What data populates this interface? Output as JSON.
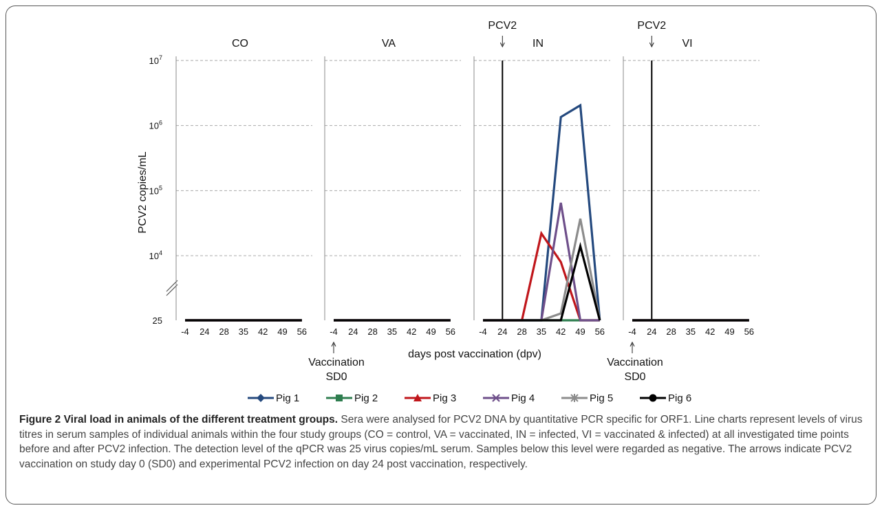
{
  "chart_data": {
    "type": "line",
    "ylabel": "PCV2 copies/mL",
    "xlabel": "days post vaccination (dpv)",
    "y_scale": "log",
    "y_ticks": [
      {
        "value": 25,
        "label": "25"
      },
      {
        "value": 10000,
        "label": "10",
        "exp": "4"
      },
      {
        "value": 100000,
        "label": "10",
        "exp": "5"
      },
      {
        "value": 1000000,
        "label": "10",
        "exp": "6"
      },
      {
        "value": 10000000,
        "label": "10",
        "exp": "7"
      }
    ],
    "categories": [
      "-4",
      "24",
      "28",
      "35",
      "42",
      "49",
      "56"
    ],
    "panels": [
      {
        "name": "CO",
        "arrow_top": "",
        "arrow_bottom": [],
        "series": [
          {
            "name": "Pig 1",
            "values": [
              25,
              25,
              25,
              25,
              25,
              25,
              25
            ]
          },
          {
            "name": "Pig 2",
            "values": [
              25,
              25,
              25,
              25,
              25,
              25,
              25
            ]
          },
          {
            "name": "Pig 3",
            "values": [
              25,
              25,
              25,
              25,
              25,
              25,
              25
            ]
          },
          {
            "name": "Pig 4",
            "values": [
              25,
              25,
              25,
              25,
              25,
              25,
              25
            ]
          },
          {
            "name": "Pig 5",
            "values": [
              25,
              25,
              25,
              25,
              25,
              25,
              25
            ]
          },
          {
            "name": "Pig 6",
            "values": [
              25,
              25,
              25,
              25,
              25,
              25,
              25
            ]
          }
        ]
      },
      {
        "name": "VA",
        "arrow_top": "",
        "arrow_bottom": [
          "Vaccination",
          "SD0"
        ],
        "series": [
          {
            "name": "Pig 1",
            "values": [
              25,
              25,
              25,
              25,
              25,
              25,
              25
            ]
          },
          {
            "name": "Pig 2",
            "values": [
              25,
              25,
              25,
              25,
              25,
              25,
              25
            ]
          },
          {
            "name": "Pig 3",
            "values": [
              25,
              25,
              25,
              25,
              25,
              25,
              25
            ]
          },
          {
            "name": "Pig 4",
            "values": [
              25,
              25,
              25,
              25,
              25,
              25,
              25
            ]
          },
          {
            "name": "Pig 5",
            "values": [
              25,
              25,
              25,
              25,
              25,
              25,
              25
            ]
          },
          {
            "name": "Pig 6",
            "values": [
              25,
              25,
              25,
              25,
              25,
              25,
              25
            ]
          }
        ]
      },
      {
        "name": "IN",
        "arrow_top": "PCV2",
        "arrow_bottom": [],
        "series": [
          {
            "name": "Pig 1",
            "values": [
              25,
              25,
              25,
              25,
              1350000,
              2050000,
              25
            ]
          },
          {
            "name": "Pig 2",
            "values": [
              25,
              25,
              25,
              25,
              25,
              25,
              25
            ]
          },
          {
            "name": "Pig 3",
            "values": [
              25,
              25,
              25,
              22000,
              8000,
              25,
              25
            ]
          },
          {
            "name": "Pig 4",
            "values": [
              25,
              25,
              25,
              25,
              65000,
              25,
              25
            ]
          },
          {
            "name": "Pig 5",
            "values": [
              25,
              25,
              25,
              25,
              30,
              37000,
              25
            ]
          },
          {
            "name": "Pig 6",
            "values": [
              25,
              25,
              25,
              25,
              25,
              14000,
              25
            ]
          }
        ]
      },
      {
        "name": "VI",
        "arrow_top": "PCV2",
        "arrow_bottom": [
          "Vaccination",
          "SD0"
        ],
        "series": [
          {
            "name": "Pig 1",
            "values": [
              25,
              25,
              25,
              25,
              25,
              25,
              25
            ]
          },
          {
            "name": "Pig 2",
            "values": [
              25,
              25,
              25,
              25,
              25,
              25,
              25
            ]
          },
          {
            "name": "Pig 3",
            "values": [
              25,
              25,
              25,
              25,
              25,
              25,
              25
            ]
          },
          {
            "name": "Pig 4",
            "values": [
              25,
              25,
              25,
              25,
              25,
              25,
              25
            ]
          },
          {
            "name": "Pig 5",
            "values": [
              25,
              25,
              25,
              25,
              25,
              25,
              25
            ]
          },
          {
            "name": "Pig 6",
            "values": [
              25,
              25,
              25,
              25,
              25,
              25,
              25
            ]
          }
        ]
      }
    ],
    "legend": {
      "placement": "bottom",
      "items": [
        {
          "name": "Pig 1",
          "color": "#24497e",
          "marker": "diamond"
        },
        {
          "name": "Pig 2",
          "color": "#2e7d4f",
          "marker": "square"
        },
        {
          "name": "Pig 3",
          "color": "#c0161b",
          "marker": "triangle"
        },
        {
          "name": "Pig 4",
          "color": "#6e4f8a",
          "marker": "x"
        },
        {
          "name": "Pig 5",
          "color": "#8c8c8c",
          "marker": "star"
        },
        {
          "name": "Pig 6",
          "color": "#000000",
          "marker": "circle"
        }
      ]
    },
    "grid": true
  },
  "caption": {
    "title": "Figure 2 Viral load in animals of the different treatment groups.",
    "body": " Sera were analysed for PCV2 DNA by quantitative PCR specific for ORF1. Line charts represent levels of virus titres in serum samples of individual animals within the four study groups (CO = control, VA = vaccinated, IN = infected, VI = vaccinated & infected) at all investigated time points before and after PCV2 infection. The detection level of the qPCR was 25 virus copies/mL serum. Samples below this level were regarded as negative. The arrows indicate PCV2 vaccination on study day 0 (SD0) and experimental PCV2 infection on day 24 post vaccination, respectively."
  }
}
